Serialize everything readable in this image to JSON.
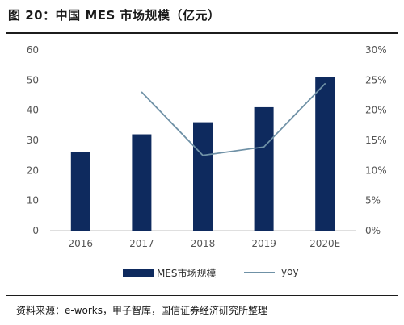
{
  "header": {
    "title": "图 20：中国 MES 市场规模（亿元）"
  },
  "footer": {
    "source": "资料来源：e-works，甲子智库，国信证券经济研究所整理"
  },
  "colors": {
    "bar": "#0e2a5e",
    "line": "#6f91a6",
    "axis_text": "#555555",
    "grid": "#e6e6e6"
  },
  "chart_data": {
    "type": "bar",
    "title": "中国 MES 市场规模（亿元）",
    "categories": [
      "2016",
      "2017",
      "2018",
      "2019",
      "2020E"
    ],
    "series": [
      {
        "name": "MES市场规模",
        "type": "bar",
        "axis": "left",
        "values": [
          26,
          32,
          36,
          41,
          51
        ]
      },
      {
        "name": "yoy",
        "type": "line",
        "axis": "right",
        "values": [
          null,
          0.23,
          0.125,
          0.139,
          0.244
        ]
      }
    ],
    "y_left": {
      "lim": [
        0,
        60
      ],
      "ticks": [
        "0",
        "10",
        "20",
        "30",
        "40",
        "50",
        "60"
      ]
    },
    "y_right": {
      "lim": [
        0,
        0.3
      ],
      "ticks": [
        "0%",
        "5%",
        "10%",
        "15%",
        "20%",
        "25%",
        "30%"
      ]
    },
    "xlabel": "",
    "ylabel": "",
    "legend": "bottom-center",
    "grid": false
  }
}
